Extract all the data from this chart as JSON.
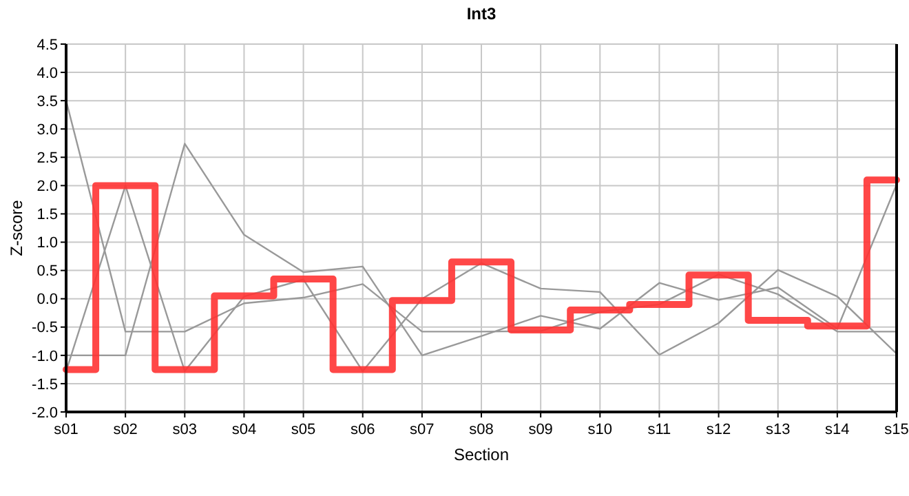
{
  "chart_data": {
    "type": "line",
    "title": "Int3",
    "xlabel": "Section",
    "ylabel": "Z-score",
    "categories": [
      "s01",
      "s02",
      "s03",
      "s04",
      "s05",
      "s06",
      "s07",
      "s08",
      "s09",
      "s10",
      "s11",
      "s12",
      "s13",
      "s14",
      "s15"
    ],
    "series": [
      {
        "color": "#999999",
        "values": [
          3.5,
          -0.58,
          -0.58,
          -0.08,
          0.02,
          0.26,
          -0.58,
          -0.58,
          -0.57,
          -0.23,
          -0.1,
          0.43,
          0.08,
          -0.58,
          -0.58
        ]
      },
      {
        "color": "#999999",
        "values": [
          -1.0,
          -1.0,
          2.74,
          1.13,
          0.47,
          0.57,
          -1.0,
          -0.66,
          -0.3,
          -0.53,
          0.28,
          -0.02,
          0.2,
          -0.53,
          2.02
        ]
      },
      {
        "color": "#999999",
        "values": [
          -1.28,
          2.0,
          -1.28,
          0.04,
          0.34,
          -1.28,
          0.0,
          0.63,
          0.18,
          0.12,
          -0.99,
          -0.43,
          0.51,
          0.04,
          -0.97
        ]
      },
      {
        "type": "step",
        "color": "#ff3333",
        "values": [
          -1.25,
          2.0,
          -1.25,
          0.05,
          0.35,
          -1.25,
          -0.03,
          0.65,
          -0.55,
          -0.2,
          -0.1,
          0.42,
          -0.38,
          -0.48,
          2.1
        ]
      }
    ],
    "ylim": [
      -2.0,
      4.5
    ],
    "yticks": [
      {
        "value": -2,
        "label": "-2.0"
      },
      -1.5,
      {
        "value": -1,
        "label": "-1.0"
      },
      -0.5,
      {
        "value": 0,
        "label": "0.0"
      },
      0.5,
      {
        "value": 1,
        "label": "1.0"
      },
      1.5,
      {
        "value": 2,
        "label": "2.0"
      },
      2.5,
      {
        "value": 3,
        "label": "3.0"
      },
      3.5,
      {
        "value": 4,
        "label": "4.0"
      },
      4.5
    ],
    "grid": true,
    "marker": "none"
  }
}
